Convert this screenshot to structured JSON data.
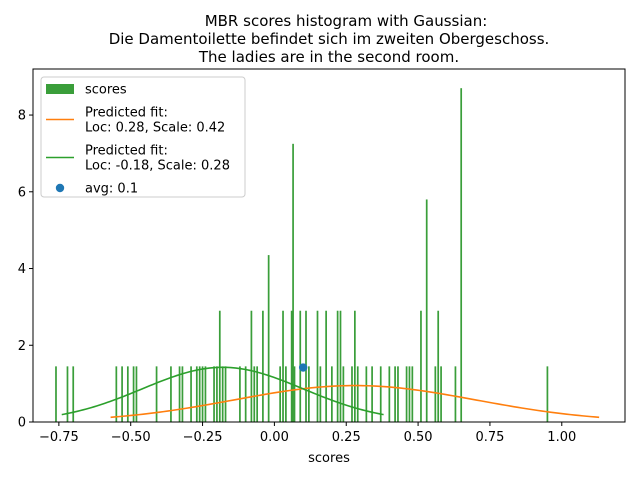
{
  "chart_data": {
    "type": "bar",
    "title_lines": [
      "MBR scores histogram with Gaussian:",
      "Die Damentoilette befindet sich im zweiten Obergeschoss.",
      "The ladies are in the second room."
    ],
    "xlabel": "scores",
    "ylabel": "",
    "xlim": [
      -0.84,
      1.22
    ],
    "ylim": [
      0,
      9.2
    ],
    "xticks": [
      -0.75,
      -0.5,
      -0.25,
      0.0,
      0.25,
      0.5,
      0.75,
      1.0
    ],
    "xtick_labels": [
      "−0.75",
      "−0.50",
      "−0.25",
      "0.00",
      "0.25",
      "0.50",
      "0.75",
      "1.00"
    ],
    "yticks": [
      0,
      2,
      4,
      6,
      8
    ],
    "ytick_labels": [
      "0",
      "2",
      "4",
      "6",
      "8"
    ],
    "grid": false,
    "legend_position": "top-left",
    "colors": {
      "histogram": "#3a9e3a",
      "fit_orange": "#ff7f0e",
      "fit_green": "#2ca02c",
      "avg_point": "#1f77b4"
    },
    "histogram": {
      "name": "scores",
      "bin_width": 0.006,
      "bins": [
        {
          "x": -0.76,
          "y": 1.45
        },
        {
          "x": -0.72,
          "y": 1.45
        },
        {
          "x": -0.7,
          "y": 1.45
        },
        {
          "x": -0.55,
          "y": 1.45
        },
        {
          "x": -0.53,
          "y": 1.45
        },
        {
          "x": -0.51,
          "y": 1.45
        },
        {
          "x": -0.49,
          "y": 1.45
        },
        {
          "x": -0.48,
          "y": 1.45
        },
        {
          "x": -0.41,
          "y": 1.45
        },
        {
          "x": -0.36,
          "y": 1.45
        },
        {
          "x": -0.33,
          "y": 1.45
        },
        {
          "x": -0.32,
          "y": 1.45
        },
        {
          "x": -0.29,
          "y": 1.45
        },
        {
          "x": -0.27,
          "y": 1.45
        },
        {
          "x": -0.26,
          "y": 1.45
        },
        {
          "x": -0.25,
          "y": 1.45
        },
        {
          "x": -0.24,
          "y": 1.45
        },
        {
          "x": -0.21,
          "y": 1.45
        },
        {
          "x": -0.2,
          "y": 1.45
        },
        {
          "x": -0.19,
          "y": 2.9
        },
        {
          "x": -0.18,
          "y": 1.45
        },
        {
          "x": -0.17,
          "y": 1.45
        },
        {
          "x": -0.12,
          "y": 1.45
        },
        {
          "x": -0.1,
          "y": 1.45
        },
        {
          "x": -0.08,
          "y": 2.9
        },
        {
          "x": -0.07,
          "y": 1.45
        },
        {
          "x": -0.06,
          "y": 1.45
        },
        {
          "x": -0.04,
          "y": 2.9
        },
        {
          "x": -0.02,
          "y": 4.35
        },
        {
          "x": 0.02,
          "y": 1.45
        },
        {
          "x": 0.03,
          "y": 2.9
        },
        {
          "x": 0.04,
          "y": 1.45
        },
        {
          "x": 0.06,
          "y": 2.9
        },
        {
          "x": 0.065,
          "y": 7.25
        },
        {
          "x": 0.07,
          "y": 1.45
        },
        {
          "x": 0.09,
          "y": 2.9
        },
        {
          "x": 0.11,
          "y": 2.9
        },
        {
          "x": 0.12,
          "y": 1.45
        },
        {
          "x": 0.15,
          "y": 2.9
        },
        {
          "x": 0.16,
          "y": 1.45
        },
        {
          "x": 0.18,
          "y": 2.9
        },
        {
          "x": 0.2,
          "y": 1.45
        },
        {
          "x": 0.22,
          "y": 2.9
        },
        {
          "x": 0.23,
          "y": 2.9
        },
        {
          "x": 0.24,
          "y": 1.45
        },
        {
          "x": 0.27,
          "y": 1.45
        },
        {
          "x": 0.28,
          "y": 2.9
        },
        {
          "x": 0.29,
          "y": 1.45
        },
        {
          "x": 0.32,
          "y": 1.45
        },
        {
          "x": 0.34,
          "y": 1.45
        },
        {
          "x": 0.37,
          "y": 1.45
        },
        {
          "x": 0.4,
          "y": 1.45
        },
        {
          "x": 0.42,
          "y": 1.45
        },
        {
          "x": 0.43,
          "y": 1.45
        },
        {
          "x": 0.46,
          "y": 1.45
        },
        {
          "x": 0.47,
          "y": 1.45
        },
        {
          "x": 0.48,
          "y": 1.45
        },
        {
          "x": 0.51,
          "y": 2.9
        },
        {
          "x": 0.53,
          "y": 5.8
        },
        {
          "x": 0.56,
          "y": 1.45
        },
        {
          "x": 0.57,
          "y": 2.9
        },
        {
          "x": 0.58,
          "y": 1.45
        },
        {
          "x": 0.63,
          "y": 1.45
        },
        {
          "x": 0.65,
          "y": 8.7
        },
        {
          "x": 0.95,
          "y": 1.45
        }
      ]
    },
    "series": [
      {
        "name": "Predicted fit:\nLoc: 0.28, Scale: 0.42",
        "loc": 0.28,
        "scale": 0.42,
        "x_range": [
          -0.57,
          1.13
        ]
      },
      {
        "name": "Predicted fit:\nLoc: -0.18, Scale: 0.28",
        "loc": -0.18,
        "scale": 0.28,
        "x_range": [
          -0.74,
          0.38
        ]
      }
    ],
    "avg_point": {
      "name": "avg: 0.1",
      "x": 0.1,
      "y": 1.42
    },
    "legend": [
      {
        "kind": "patch",
        "lines": [
          "scores"
        ]
      },
      {
        "kind": "line-orange",
        "lines": [
          "Predicted fit:",
          "Loc: 0.28, Scale: 0.42"
        ]
      },
      {
        "kind": "line-green",
        "lines": [
          "Predicted fit:",
          "Loc: -0.18, Scale: 0.28"
        ]
      },
      {
        "kind": "point",
        "lines": [
          "avg: 0.1"
        ]
      }
    ]
  }
}
